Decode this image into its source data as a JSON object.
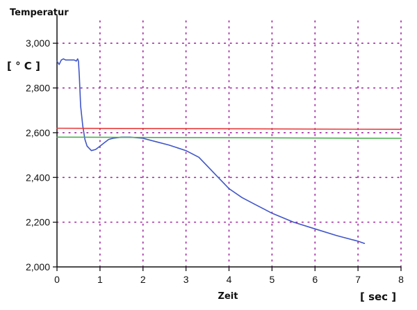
{
  "chart_data": {
    "type": "line",
    "title": "",
    "ylabel": "Temperatur",
    "yunit": "[ ° C ]",
    "xlabel": "Zeit",
    "xunit": "[ sec ]",
    "xlim": [
      0,
      8
    ],
    "ylim": [
      2000,
      3100
    ],
    "xticks": [
      0,
      1,
      2,
      3,
      4,
      5,
      6,
      7,
      8
    ],
    "xtick_labels": [
      "0",
      "1",
      "2",
      "3",
      "4",
      "5",
      "6",
      "7",
      "8"
    ],
    "yticks": [
      2000,
      2200,
      2400,
      2600,
      2800,
      3000
    ],
    "ytick_labels": [
      "2,000",
      "2,200",
      "2,400",
      "2,600",
      "2,800",
      "3,000"
    ],
    "grid": true,
    "grid_color": "#a020a0",
    "axis_color": "#111111",
    "series": [
      {
        "color": "#3f55c9",
        "x": [
          0.0,
          0.05,
          0.1,
          0.15,
          0.2,
          0.3,
          0.4,
          0.45,
          0.48,
          0.5,
          0.52,
          0.55,
          0.6,
          0.65,
          0.7,
          0.8,
          0.9,
          1.0,
          1.1,
          1.2,
          1.3,
          1.5,
          1.7,
          2.0,
          2.3,
          2.6,
          3.0,
          3.3,
          3.5,
          3.7,
          3.85,
          4.0,
          4.3,
          4.6,
          5.0,
          5.5,
          6.0,
          6.5,
          7.0,
          7.15
        ],
        "y": [
          2920,
          2905,
          2925,
          2930,
          2925,
          2925,
          2925,
          2920,
          2930,
          2920,
          2850,
          2720,
          2630,
          2570,
          2540,
          2520,
          2525,
          2540,
          2555,
          2570,
          2575,
          2580,
          2580,
          2575,
          2560,
          2545,
          2520,
          2490,
          2450,
          2410,
          2380,
          2350,
          2310,
          2280,
          2240,
          2200,
          2170,
          2140,
          2115,
          2105
        ]
      },
      {
        "color": "#e63b3b",
        "x": [
          0,
          8
        ],
        "y": [
          2620,
          2615
        ]
      },
      {
        "color": "#4caf50",
        "x": [
          0,
          8
        ],
        "y": [
          2580,
          2575
        ]
      }
    ]
  }
}
